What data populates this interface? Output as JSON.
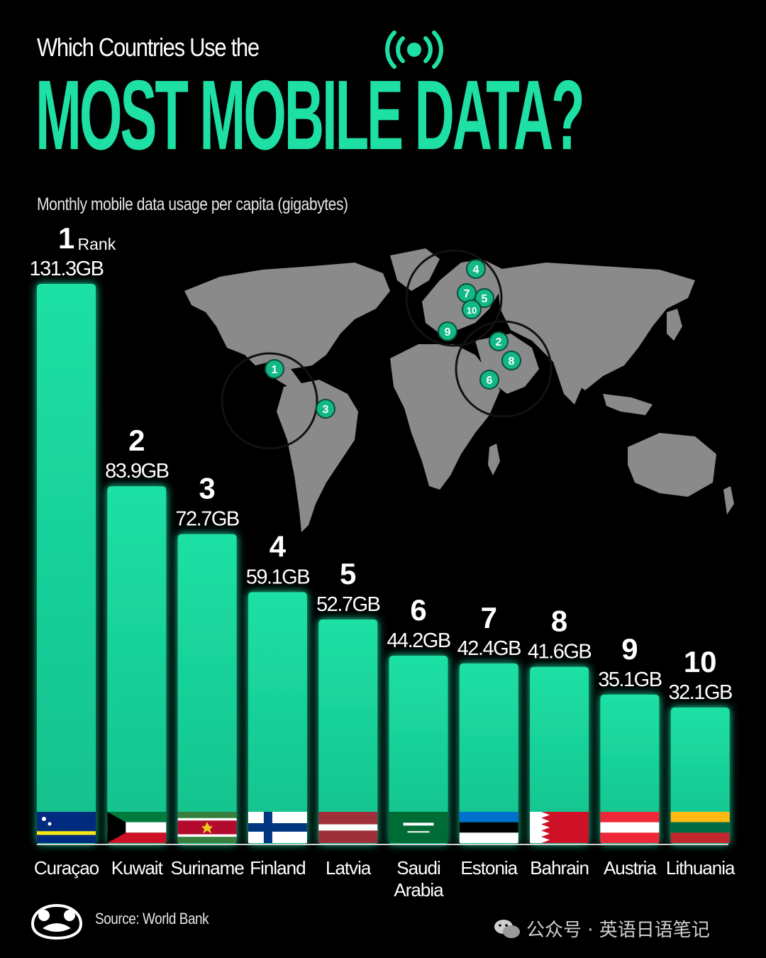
{
  "header": {
    "pre_title": "Which Countries Use the",
    "title": "MOST MOBILE DATA?",
    "subtitle": "Monthly mobile data usage per capita (gigabytes)"
  },
  "footer": {
    "source": "Source: World Bank",
    "watermark": "公众号 · 英语日语笔记"
  },
  "colors": {
    "accent": "#1ee0a4",
    "bar_top": "#1ee0a4",
    "bar_bottom": "#14c592",
    "background": "#000000",
    "map_land": "#8a8a8a",
    "marker": "#12b886"
  },
  "chart_data": {
    "type": "bar",
    "title": "MOST MOBILE DATA?",
    "subtitle": "Monthly mobile data usage per capita (gigabytes)",
    "rank_label": "Rank",
    "unit": "GB",
    "categories": [
      "Curaçao",
      "Kuwait",
      "Suriname",
      "Finland",
      "Latvia",
      "Saudi Arabia",
      "Estonia",
      "Bahrain",
      "Austria",
      "Lithuania"
    ],
    "category_lines": [
      [
        "Curaçao"
      ],
      [
        "Kuwait"
      ],
      [
        "Suriname"
      ],
      [
        "Finland"
      ],
      [
        "Latvia"
      ],
      [
        "Saudi",
        "Arabia"
      ],
      [
        "Estonia"
      ],
      [
        "Bahrain"
      ],
      [
        "Austria"
      ],
      [
        "Lithuania"
      ]
    ],
    "ranks": [
      "1",
      "2",
      "3",
      "4",
      "5",
      "6",
      "7",
      "8",
      "9",
      "10"
    ],
    "values": [
      131.3,
      83.9,
      72.7,
      59.1,
      52.7,
      44.2,
      42.4,
      41.6,
      35.1,
      32.1
    ],
    "value_labels": [
      "131.3GB",
      "83.9GB",
      "72.7GB",
      "59.1GB",
      "52.7GB",
      "44.2GB",
      "42.4GB",
      "41.6GB",
      "35.1GB",
      "32.1GB"
    ],
    "ylim": [
      0,
      131.3
    ],
    "flag_icons": [
      "curacao-flag",
      "kuwait-flag",
      "suriname-flag",
      "finland-flag",
      "latvia-flag",
      "saudi-arabia-flag",
      "estonia-flag",
      "bahrain-flag",
      "austria-flag",
      "lithuania-flag"
    ],
    "map_markers": [
      "1",
      "2",
      "3",
      "4",
      "5",
      "6",
      "7",
      "8",
      "9",
      "10"
    ]
  }
}
